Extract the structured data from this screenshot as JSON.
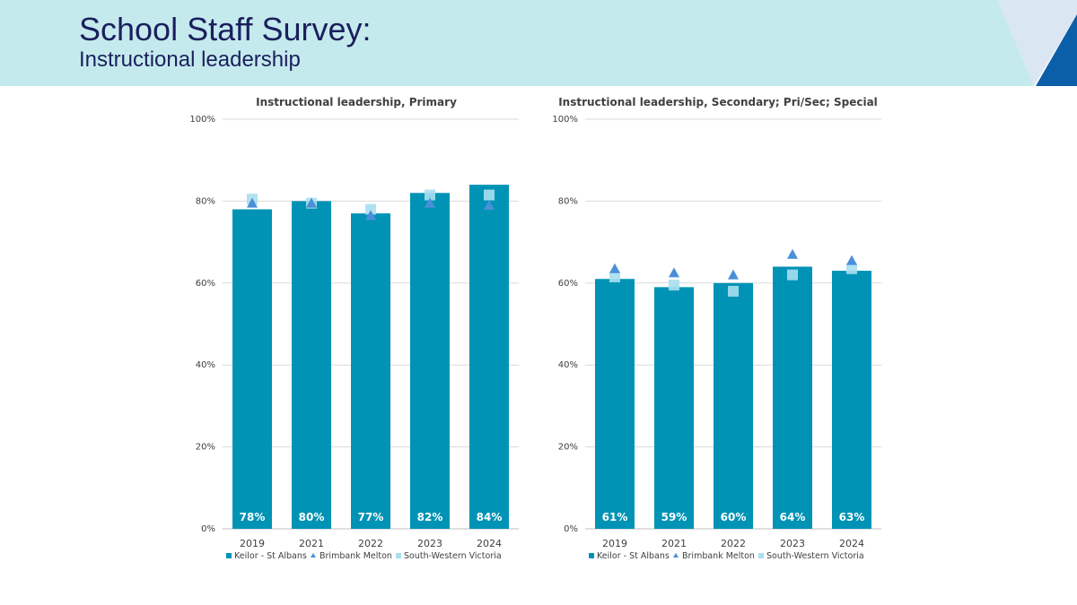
{
  "header": {
    "title": "School Staff Survey:",
    "subtitle": "Instructional leadership"
  },
  "colors": {
    "banner": "#c5eaed",
    "title": "#1b1f5e",
    "corner_dark": "#0b5ea8",
    "corner_light": "#dbe6f3",
    "bar": "#0093b5",
    "triangle": "#4a8fd8",
    "square": "#a8dff0"
  },
  "chart_data": [
    {
      "type": "bar",
      "title": "Instructional leadership, Primary",
      "categories": [
        "2019",
        "2021",
        "2022",
        "2023",
        "2024"
      ],
      "ylim": [
        0,
        100
      ],
      "yticks": [
        "0%",
        "20%",
        "40%",
        "60%",
        "80%",
        "100%"
      ],
      "grid": true,
      "legend_position": "bottom",
      "series": [
        {
          "name": "Keilor - St Albans",
          "kind": "bar",
          "values": [
            78,
            80,
            77,
            82,
            84
          ],
          "labels": [
            "78%",
            "80%",
            "77%",
            "82%",
            "84%"
          ]
        },
        {
          "name": "Brimbank Melton",
          "kind": "triangle",
          "values": [
            79.5,
            79.5,
            76.5,
            79.5,
            79
          ]
        },
        {
          "name": "South-Western Victoria",
          "kind": "square",
          "values": [
            80.5,
            79.5,
            78,
            81.5,
            81.5
          ]
        }
      ]
    },
    {
      "type": "bar",
      "title": "Instructional leadership, Secondary; Pri/Sec; Special",
      "categories": [
        "2019",
        "2021",
        "2022",
        "2023",
        "2024"
      ],
      "ylim": [
        0,
        100
      ],
      "yticks": [
        "0%",
        "20%",
        "40%",
        "60%",
        "80%",
        "100%"
      ],
      "grid": true,
      "legend_position": "bottom",
      "series": [
        {
          "name": "Keilor - St Albans",
          "kind": "bar",
          "values": [
            61,
            59,
            60,
            64,
            63
          ],
          "labels": [
            "61%",
            "59%",
            "60%",
            "64%",
            "63%"
          ]
        },
        {
          "name": "Brimbank Melton",
          "kind": "triangle",
          "values": [
            63.5,
            62.5,
            62,
            67,
            65.5
          ]
        },
        {
          "name": "South-Western Victoria",
          "kind": "square",
          "values": [
            61.5,
            59.5,
            58,
            62,
            63.5
          ]
        }
      ]
    }
  ]
}
